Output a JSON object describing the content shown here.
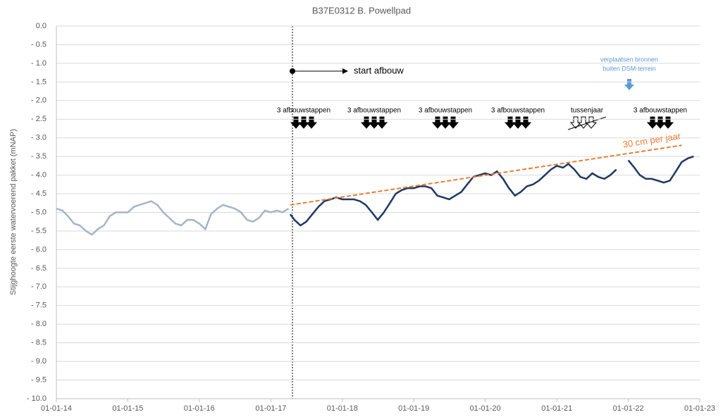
{
  "chart_data": {
    "type": "line",
    "title": "B37E0312 B. Powellpad",
    "y_label": "Stijghoogte eerste watervoerend pakket (mNAP)",
    "xlim": [
      "2014-01-01",
      "2023-01-01"
    ],
    "xticks": [
      {
        "value": "2014-01-01",
        "label": "01-01-14"
      },
      {
        "value": "2015-01-01",
        "label": "01-01-15"
      },
      {
        "value": "2016-01-01",
        "label": "01-01-16"
      },
      {
        "value": "2017-01-01",
        "label": "01-01-17"
      },
      {
        "value": "2018-01-01",
        "label": "01-01-18"
      },
      {
        "value": "2019-01-01",
        "label": "01-01-19"
      },
      {
        "value": "2020-01-01",
        "label": "01-01-20"
      },
      {
        "value": "2021-01-01",
        "label": "01-01-21"
      },
      {
        "value": "2022-01-01",
        "label": "01-01-22"
      },
      {
        "value": "2023-01-01",
        "label": "01-01-23"
      }
    ],
    "ylim": [
      -10,
      0
    ],
    "yticks": [
      {
        "value": 0,
        "label": "0.0"
      },
      {
        "value": -0.5,
        "label": "- 0.5"
      },
      {
        "value": -1,
        "label": "- 1.0"
      },
      {
        "value": -1.5,
        "label": "- 1.5"
      },
      {
        "value": -2,
        "label": "- 2.0"
      },
      {
        "value": -2.5,
        "label": "- 2.5"
      },
      {
        "value": -3,
        "label": "- 3.0"
      },
      {
        "value": -3.5,
        "label": "- 3.5"
      },
      {
        "value": -4,
        "label": "- 4.0"
      },
      {
        "value": -4.5,
        "label": "- 4.5"
      },
      {
        "value": -5,
        "label": "- 5.0"
      },
      {
        "value": -5.5,
        "label": "- 5.5"
      },
      {
        "value": -6,
        "label": "- 6.0"
      },
      {
        "value": -6.5,
        "label": "- 6.5"
      },
      {
        "value": -7,
        "label": "- 7.0"
      },
      {
        "value": -7.5,
        "label": "- 7.5"
      },
      {
        "value": -8,
        "label": "- 8.0"
      },
      {
        "value": -8.5,
        "label": "- 8.5"
      },
      {
        "value": -9,
        "label": "- 9.0"
      },
      {
        "value": -9.5,
        "label": "- 9.5"
      },
      {
        "value": -10,
        "label": "- 10.0"
      }
    ],
    "grid": true,
    "series": [
      {
        "color": "#a6b4c8",
        "x": [
          "2014-01-01",
          "2014-02-01",
          "2014-03-01",
          "2014-04-01",
          "2014-05-01",
          "2014-06-01",
          "2014-07-01",
          "2014-08-01",
          "2014-09-01",
          "2014-10-01",
          "2014-11-01",
          "2014-12-01",
          "2015-01-01",
          "2015-02-01",
          "2015-03-01",
          "2015-04-01",
          "2015-05-01",
          "2015-06-01",
          "2015-07-01",
          "2015-08-01",
          "2015-09-01",
          "2015-10-01",
          "2015-11-01",
          "2015-12-01",
          "2016-01-01",
          "2016-02-01",
          "2016-03-01",
          "2016-04-01",
          "2016-05-01",
          "2016-06-01",
          "2016-07-01",
          "2016-08-01",
          "2016-09-01",
          "2016-10-01",
          "2016-11-01",
          "2016-12-01",
          "2017-01-01",
          "2017-02-01",
          "2017-03-01",
          "2017-04-01"
        ],
        "values": [
          -4.9,
          -4.95,
          -5.1,
          -5.3,
          -5.35,
          -5.5,
          -5.6,
          -5.45,
          -5.35,
          -5.1,
          -5.0,
          -5.0,
          -5.0,
          -4.85,
          -4.8,
          -4.75,
          -4.7,
          -4.8,
          -5.0,
          -5.15,
          -5.3,
          -5.35,
          -5.2,
          -5.2,
          -5.3,
          -5.45,
          -5.05,
          -4.9,
          -4.8,
          -4.85,
          -4.9,
          -5.0,
          -5.2,
          -5.25,
          -5.15,
          -4.95,
          -5.0,
          -4.95,
          -5.0,
          -4.9
        ]
      },
      {
        "color": "#1f3864",
        "x": [
          "2017-04-10",
          "2017-05-01",
          "2017-06-01",
          "2017-07-01",
          "2017-08-01",
          "2017-09-01",
          "2017-10-01",
          "2017-11-01",
          "2017-12-01",
          "2018-01-01",
          "2018-02-01",
          "2018-03-01",
          "2018-04-01",
          "2018-05-01",
          "2018-06-01",
          "2018-07-01",
          "2018-08-01",
          "2018-09-01",
          "2018-10-01",
          "2018-11-01",
          "2018-12-01",
          "2019-01-01",
          "2019-02-01",
          "2019-03-01",
          "2019-04-01",
          "2019-05-01",
          "2019-06-01",
          "2019-07-01",
          "2019-08-01",
          "2019-09-01",
          "2019-10-01",
          "2019-11-01",
          "2019-12-01",
          "2020-01-01",
          "2020-02-01",
          "2020-03-01",
          "2020-04-01",
          "2020-05-01",
          "2020-06-01",
          "2020-07-01",
          "2020-08-01",
          "2020-09-01",
          "2020-10-01",
          "2020-11-01",
          "2020-12-01",
          "2021-01-01",
          "2021-02-01",
          "2021-03-01",
          "2021-04-01",
          "2021-05-01",
          "2021-06-01",
          "2021-07-01",
          "2021-08-01",
          "2021-09-01",
          "2021-10-01",
          "2021-11-01",
          "2021-12-01",
          "2022-01-01",
          "2022-02-01",
          "2022-03-01",
          "2022-04-01",
          "2022-05-01",
          "2022-06-01",
          "2022-07-01",
          "2022-08-01",
          "2022-09-01",
          "2022-10-01",
          "2022-11-01",
          "2022-12-01"
        ],
        "values": [
          -5.05,
          -5.2,
          -5.35,
          -5.25,
          -5.05,
          -4.85,
          -4.7,
          -4.65,
          -4.6,
          -4.65,
          -4.65,
          -4.65,
          -4.7,
          -4.8,
          -5.0,
          -5.2,
          -5.0,
          -4.75,
          -4.5,
          -4.4,
          -4.35,
          -4.35,
          -4.3,
          -4.3,
          -4.35,
          -4.55,
          -4.6,
          -4.65,
          -4.55,
          -4.45,
          -4.25,
          -4.05,
          -4.0,
          -3.95,
          -4.0,
          -3.9,
          -4.1,
          -4.35,
          -4.55,
          -4.45,
          -4.3,
          -4.25,
          -4.15,
          -4.0,
          -3.85,
          -3.75,
          -3.8,
          -3.7,
          -3.85,
          -4.05,
          -4.1,
          -3.95,
          -4.05,
          -4.1,
          -4.0,
          -3.85,
          null,
          -3.6,
          -3.8,
          -4.0,
          -4.1,
          -4.1,
          -4.15,
          -4.2,
          -4.15,
          -3.9,
          -3.65,
          -3.55,
          -3.5
        ]
      }
    ],
    "trendline": {
      "x": [
        "2017-04-10",
        "2022-10-01"
      ],
      "values": [
        -4.8,
        -3.2
      ],
      "color": "#ed7d31",
      "label": "30 cm per jaar"
    },
    "annotations": {
      "start": "start afbouw",
      "steps": [
        "3 afbouwstappen",
        "3 afbouwstappen",
        "3 afbouwstappen",
        "3 afbouwstappen",
        "3 afbouwstappen"
      ],
      "gap_year": "tussenjaar",
      "move": [
        "verplaatsen bronnen",
        "buiten DSM-terrein"
      ]
    }
  }
}
